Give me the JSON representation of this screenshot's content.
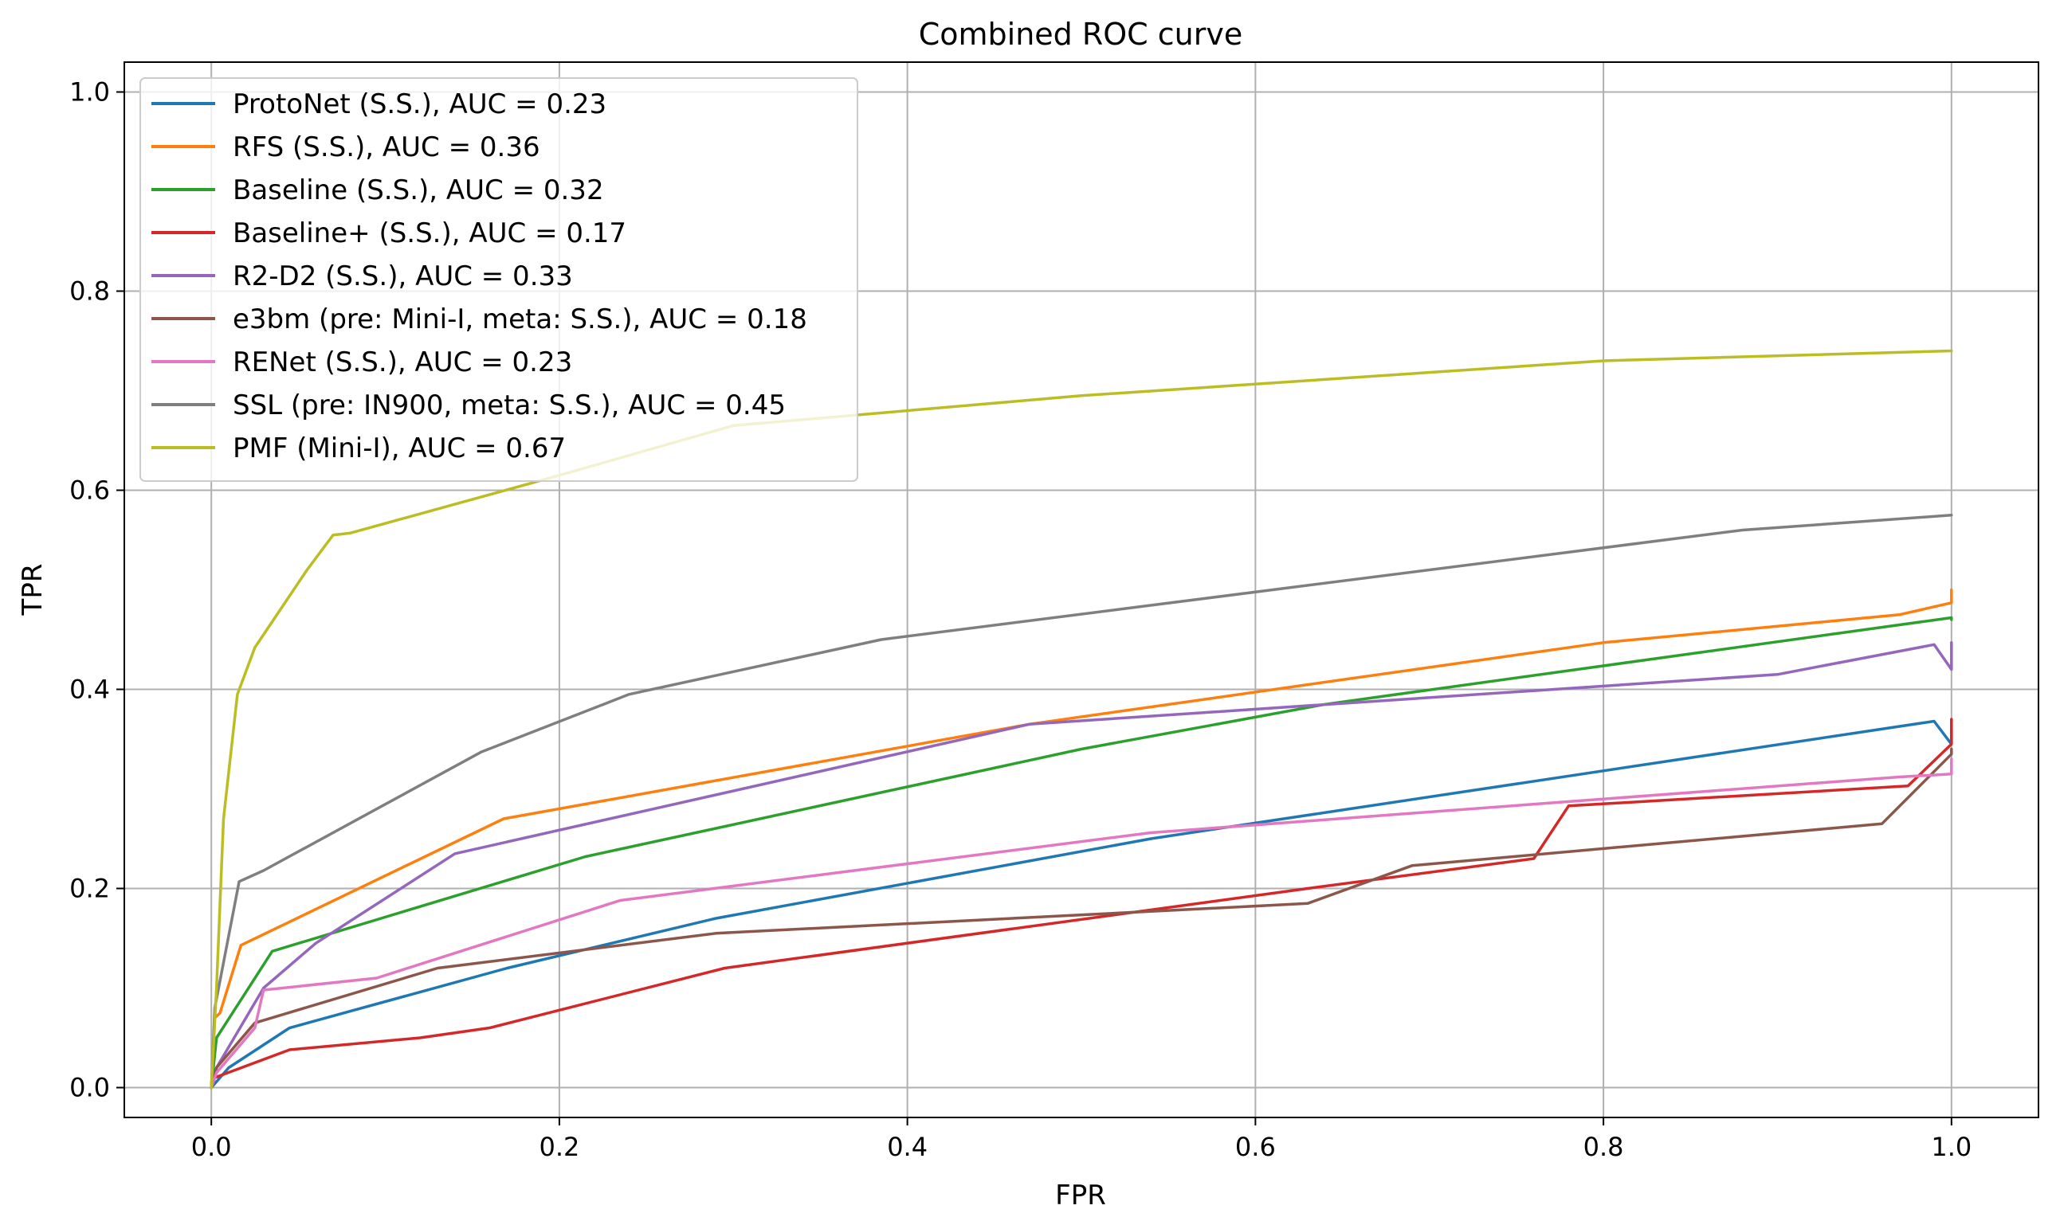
{
  "chart_data": {
    "type": "line",
    "title": "Combined ROC curve",
    "xlabel": "FPR",
    "ylabel": "TPR",
    "xlim": [
      -0.05,
      1.05
    ],
    "ylim": [
      -0.03,
      1.03
    ],
    "xticks": [
      "0.0",
      "0.2",
      "0.4",
      "0.6",
      "0.8",
      "1.0"
    ],
    "yticks": [
      "0.0",
      "0.2",
      "0.4",
      "0.6",
      "0.8",
      "1.0"
    ],
    "grid": true,
    "legend_position": "upper-left",
    "series": [
      {
        "name": "ProtoNet (S.S.), AUC = 0.23",
        "color": "#1f77b4",
        "x": [
          0.0,
          0.01,
          0.045,
          0.17,
          0.29,
          0.54,
          0.99,
          1.0,
          1.0
        ],
        "y": [
          0.0,
          0.02,
          0.06,
          0.12,
          0.17,
          0.25,
          0.368,
          0.345,
          0.36
        ]
      },
      {
        "name": "RFS (S.S.), AUC = 0.36",
        "color": "#ff7f0e",
        "x": [
          0.0,
          0.002,
          0.005,
          0.017,
          0.168,
          0.47,
          0.8,
          0.97,
          1.0,
          1.0
        ],
        "y": [
          0.0,
          0.07,
          0.075,
          0.143,
          0.27,
          0.365,
          0.447,
          0.475,
          0.487,
          0.5
        ]
      },
      {
        "name": "Baseline (S.S.), AUC = 0.32",
        "color": "#2ca02c",
        "x": [
          0.0,
          0.003,
          0.035,
          0.215,
          0.5,
          0.64,
          1.0,
          1.0
        ],
        "y": [
          0.0,
          0.05,
          0.137,
          0.232,
          0.34,
          0.385,
          0.472,
          0.47
        ]
      },
      {
        "name": "Baseline+ (S.S.), AUC = 0.17",
        "color": "#d62728",
        "x": [
          0.0,
          0.002,
          0.045,
          0.12,
          0.16,
          0.295,
          0.63,
          0.76,
          0.78,
          0.975,
          1.0,
          1.0
        ],
        "y": [
          0.0,
          0.01,
          0.038,
          0.05,
          0.06,
          0.12,
          0.2,
          0.23,
          0.283,
          0.303,
          0.345,
          0.37
        ]
      },
      {
        "name": "R2-D2 (S.S.), AUC = 0.33",
        "color": "#9467bd",
        "x": [
          0.0,
          0.003,
          0.03,
          0.06,
          0.14,
          0.47,
          0.9,
          0.99,
          1.0,
          1.0
        ],
        "y": [
          0.0,
          0.02,
          0.1,
          0.145,
          0.235,
          0.365,
          0.415,
          0.445,
          0.42,
          0.447
        ]
      },
      {
        "name": "e3bm (pre: Mini-I, meta: S.S.), AUC = 0.18",
        "color": "#8c564b",
        "x": [
          0.0,
          0.003,
          0.025,
          0.13,
          0.29,
          0.63,
          0.69,
          0.96,
          1.0,
          1.0
        ],
        "y": [
          0.0,
          0.02,
          0.065,
          0.12,
          0.155,
          0.185,
          0.223,
          0.265,
          0.335,
          0.34
        ]
      },
      {
        "name": "RENet (S.S.), AUC = 0.23",
        "color": "#e377c2",
        "x": [
          0.0,
          0.003,
          0.025,
          0.03,
          0.095,
          0.235,
          0.54,
          0.97,
          1.0,
          1.0
        ],
        "y": [
          0.0,
          0.015,
          0.06,
          0.098,
          0.11,
          0.188,
          0.256,
          0.312,
          0.315,
          0.33
        ]
      },
      {
        "name": "SSL (pre: IN900, meta: S.S.), AUC = 0.45",
        "color": "#7f7f7f",
        "x": [
          0.0,
          0.002,
          0.016,
          0.03,
          0.155,
          0.24,
          0.385,
          0.88,
          1.0
        ],
        "y": [
          0.0,
          0.08,
          0.207,
          0.218,
          0.337,
          0.395,
          0.45,
          0.56,
          0.575
        ]
      },
      {
        "name": "PMF (Mini-I), AUC = 0.67",
        "color": "#bcbd22",
        "x": [
          0.0,
          0.003,
          0.007,
          0.015,
          0.025,
          0.055,
          0.07,
          0.08,
          0.2,
          0.3,
          0.5,
          0.8,
          1.0
        ],
        "y": [
          0.0,
          0.1,
          0.27,
          0.395,
          0.442,
          0.52,
          0.555,
          0.557,
          0.615,
          0.665,
          0.695,
          0.73,
          0.74
        ]
      }
    ]
  }
}
